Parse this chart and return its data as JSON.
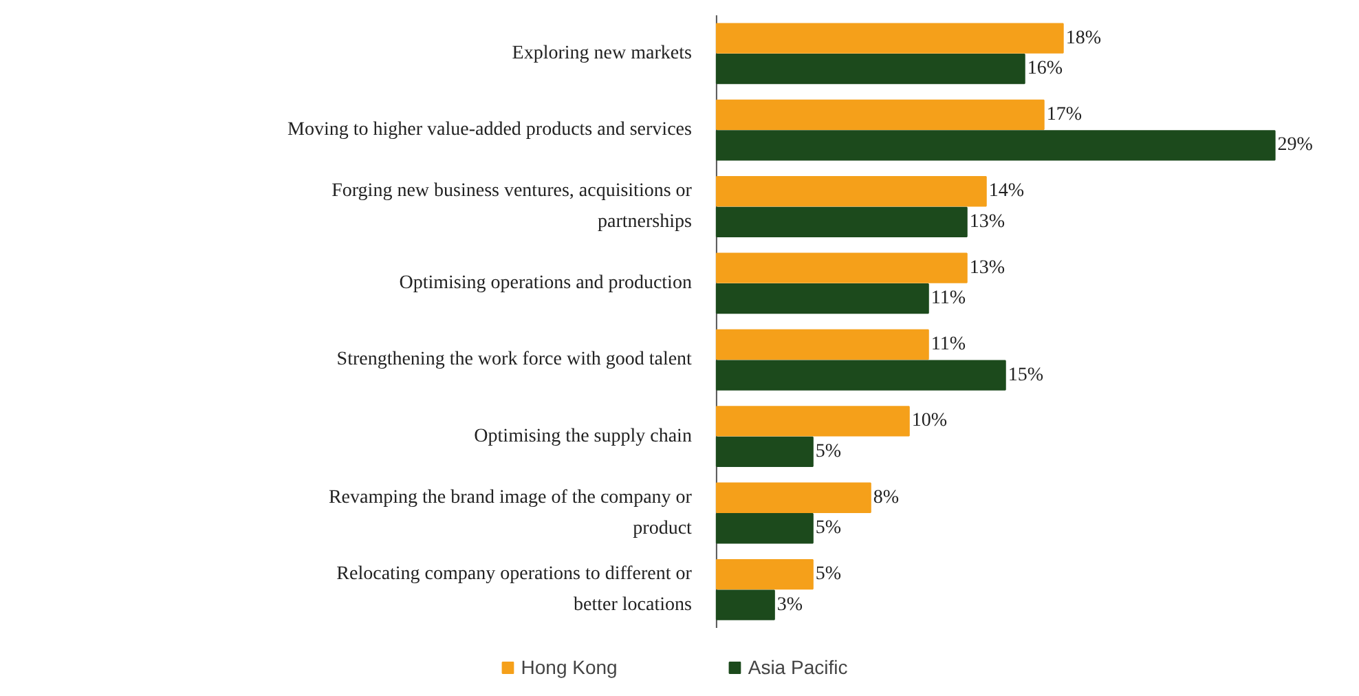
{
  "chart_data": {
    "type": "bar",
    "orientation": "horizontal",
    "categories": [
      "Exploring new markets",
      "Moving to higher value-added products and services",
      "Forging new business ventures, acquisitions or partnerships",
      "Optimising operations and production",
      "Strengthening the work force with good talent",
      "Optimising the supply chain",
      "Revamping the brand image of the company or product",
      "Relocating company operations to different or better locations"
    ],
    "series": [
      {
        "name": "Hong Kong",
        "color": "#f5a01a",
        "values": [
          18,
          17,
          14,
          13,
          11,
          10,
          8,
          5
        ],
        "value_labels": [
          "18%",
          "17%",
          "14%",
          "13%",
          "11%",
          "10%",
          "8%",
          "5%"
        ]
      },
      {
        "name": "Asia Pacific",
        "color": "#1c4a1c",
        "values": [
          16,
          29,
          13,
          11,
          15,
          5,
          5,
          3
        ],
        "value_labels": [
          "16%",
          "29%",
          "13%",
          "11%",
          "15%",
          "5%",
          "5%",
          "3%"
        ]
      }
    ],
    "legend": "bottom"
  }
}
